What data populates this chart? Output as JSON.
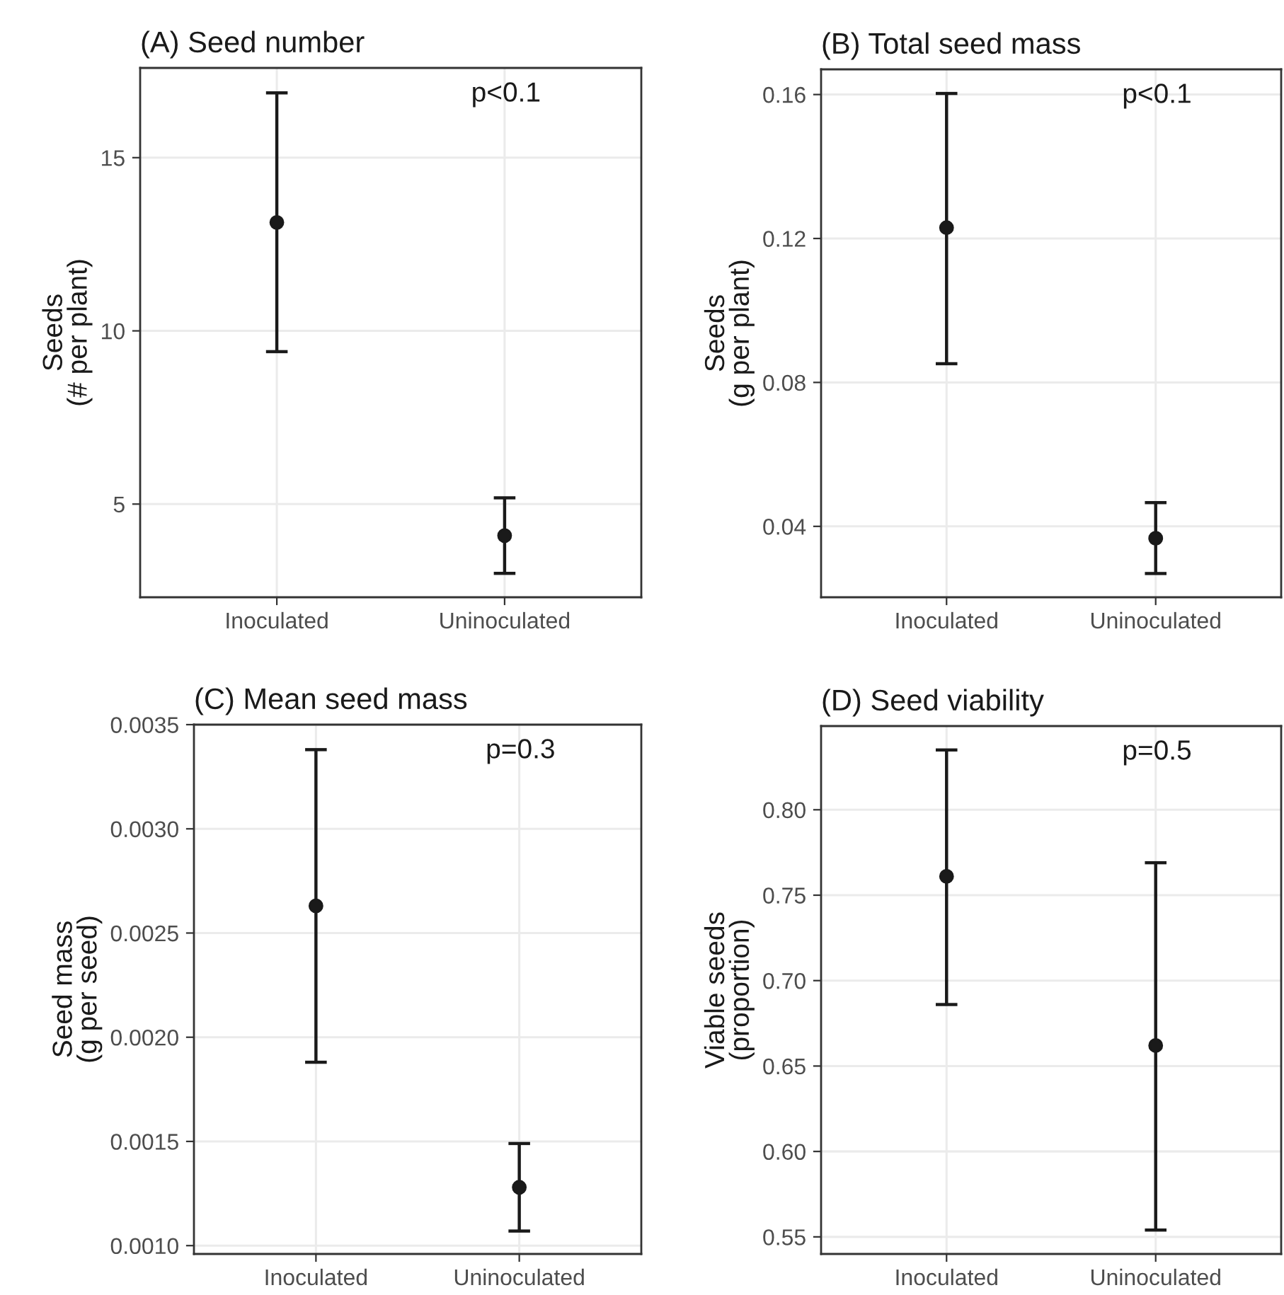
{
  "chart_data": [
    {
      "type": "scatter",
      "title": "(A) Seed number",
      "ylabel": "Seeds\n(# per plant)",
      "annotations": [
        "p<0.1"
      ],
      "categories": [
        "Inoculated",
        "Uninoculated"
      ],
      "series": [
        {
          "color": "#1a1a1a",
          "values": [
            13.13,
            4.09
          ],
          "errors": [
            [
              9.4,
              16.87
            ],
            [
              3.0,
              5.18
            ]
          ]
        }
      ],
      "ylim": [
        2.31,
        17.59
      ],
      "yticks": [
        5,
        10,
        15
      ],
      "grid": true,
      "marker": "circle"
    },
    {
      "type": "scatter",
      "title": "(B) Total seed mass",
      "ylabel": "Seeds\n(g per plant)",
      "annotations": [
        "p<0.1"
      ],
      "categories": [
        "Inoculated",
        "Uninoculated"
      ],
      "series": [
        {
          "color": "#1a1a1a",
          "values": [
            0.123,
            0.0367
          ],
          "errors": [
            [
              0.0852,
              0.1603
            ],
            [
              0.0269,
              0.0466
            ]
          ]
        }
      ],
      "ylim": [
        0.0203,
        0.167
      ],
      "yticks": [
        {
          "value": 0.04,
          "label": "0.04"
        },
        {
          "value": 0.08,
          "label": "0.08"
        },
        {
          "value": 0.12,
          "label": "0.12"
        },
        {
          "value": 0.16,
          "label": "0.16"
        }
      ],
      "grid": true,
      "marker": "circle"
    },
    {
      "type": "scatter",
      "title": "(C) Mean seed mass",
      "ylabel": "Seed mass\n(g per seed)",
      "annotations": [
        "p=0.3"
      ],
      "categories": [
        "Inoculated",
        "Uninoculated"
      ],
      "series": [
        {
          "color": "#1a1a1a",
          "values": [
            0.00263,
            0.00128
          ],
          "errors": [
            [
              0.00188,
              0.00338
            ],
            [
              0.00107,
              0.00149
            ]
          ]
        }
      ],
      "ylim": [
        0.00096,
        0.0035
      ],
      "yticks": [
        {
          "value": 0.001,
          "label": "0.0010"
        },
        {
          "value": 0.0015,
          "label": "0.0015"
        },
        {
          "value": 0.002,
          "label": "0.0020"
        },
        {
          "value": 0.0025,
          "label": "0.0025"
        },
        {
          "value": 0.003,
          "label": "0.0030"
        },
        {
          "value": 0.0035,
          "label": "0.0035"
        }
      ],
      "grid": true,
      "marker": "circle"
    },
    {
      "type": "scatter",
      "title": "(D) Seed viability",
      "ylabel": "Viable seeds\n(proportion)",
      "annotations": [
        "p=0.5"
      ],
      "categories": [
        "Inoculated",
        "Uninoculated"
      ],
      "series": [
        {
          "color": "#1a1a1a",
          "values": [
            0.761,
            0.662
          ],
          "errors": [
            [
              0.686,
              0.835
            ],
            [
              0.554,
              0.769
            ]
          ]
        }
      ],
      "ylim": [
        0.54,
        0.849
      ],
      "yticks": [
        {
          "value": 0.55,
          "label": "0.55"
        },
        {
          "value": 0.6,
          "label": "0.60"
        },
        {
          "value": 0.65,
          "label": "0.65"
        },
        {
          "value": 0.7,
          "label": "0.70"
        },
        {
          "value": 0.75,
          "label": "0.75"
        },
        {
          "value": 0.8,
          "label": "0.80"
        }
      ],
      "grid": true,
      "marker": "circle"
    }
  ]
}
